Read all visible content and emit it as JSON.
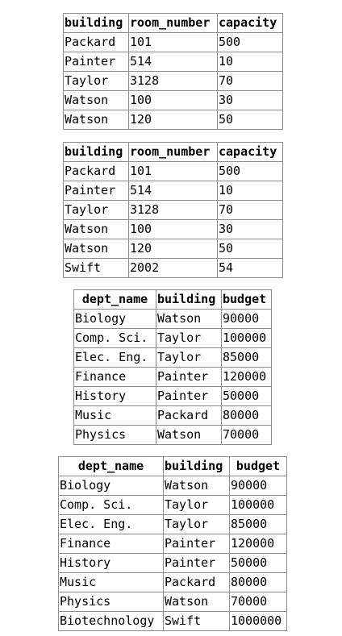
{
  "tables": [
    {
      "headers": [
        "building",
        "room_number",
        "capacity"
      ],
      "rows": [
        [
          "Packard",
          "101",
          "500"
        ],
        [
          "Painter",
          "514",
          "10"
        ],
        [
          "Taylor",
          "3128",
          "70"
        ],
        [
          "Watson",
          "100",
          "30"
        ],
        [
          "Watson",
          "120",
          "50"
        ]
      ]
    },
    {
      "headers": [
        "building",
        "room_number",
        "capacity"
      ],
      "rows": [
        [
          "Packard",
          "101",
          "500"
        ],
        [
          "Painter",
          "514",
          "10"
        ],
        [
          "Taylor",
          "3128",
          "70"
        ],
        [
          "Watson",
          "100",
          "30"
        ],
        [
          "Watson",
          "120",
          "50"
        ],
        [
          "Swift",
          "2002",
          "54"
        ]
      ]
    },
    {
      "headers": [
        "dept_name",
        "building",
        "budget"
      ],
      "rows": [
        [
          "Biology",
          "Watson",
          "90000"
        ],
        [
          "Comp. Sci.",
          "Taylor",
          "100000"
        ],
        [
          "Elec. Eng.",
          "Taylor",
          "85000"
        ],
        [
          "Finance",
          "Painter",
          "120000"
        ],
        [
          "History",
          "Painter",
          "50000"
        ],
        [
          "Music",
          "Packard",
          "80000"
        ],
        [
          "Physics",
          "Watson",
          "70000"
        ]
      ]
    },
    {
      "headers": [
        "dept_name",
        "building",
        "budget"
      ],
      "rows": [
        [
          "Biology",
          "Watson",
          "90000"
        ],
        [
          "Comp. Sci.",
          "Taylor",
          "100000"
        ],
        [
          "Elec. Eng.",
          "Taylor",
          "85000"
        ],
        [
          "Finance",
          "Painter",
          "120000"
        ],
        [
          "History",
          "Painter",
          "50000"
        ],
        [
          "Music",
          "Packard",
          "80000"
        ],
        [
          "Physics",
          "Watson",
          "70000"
        ],
        [
          "Biotechnology",
          "Swift",
          "1000000"
        ]
      ]
    }
  ]
}
